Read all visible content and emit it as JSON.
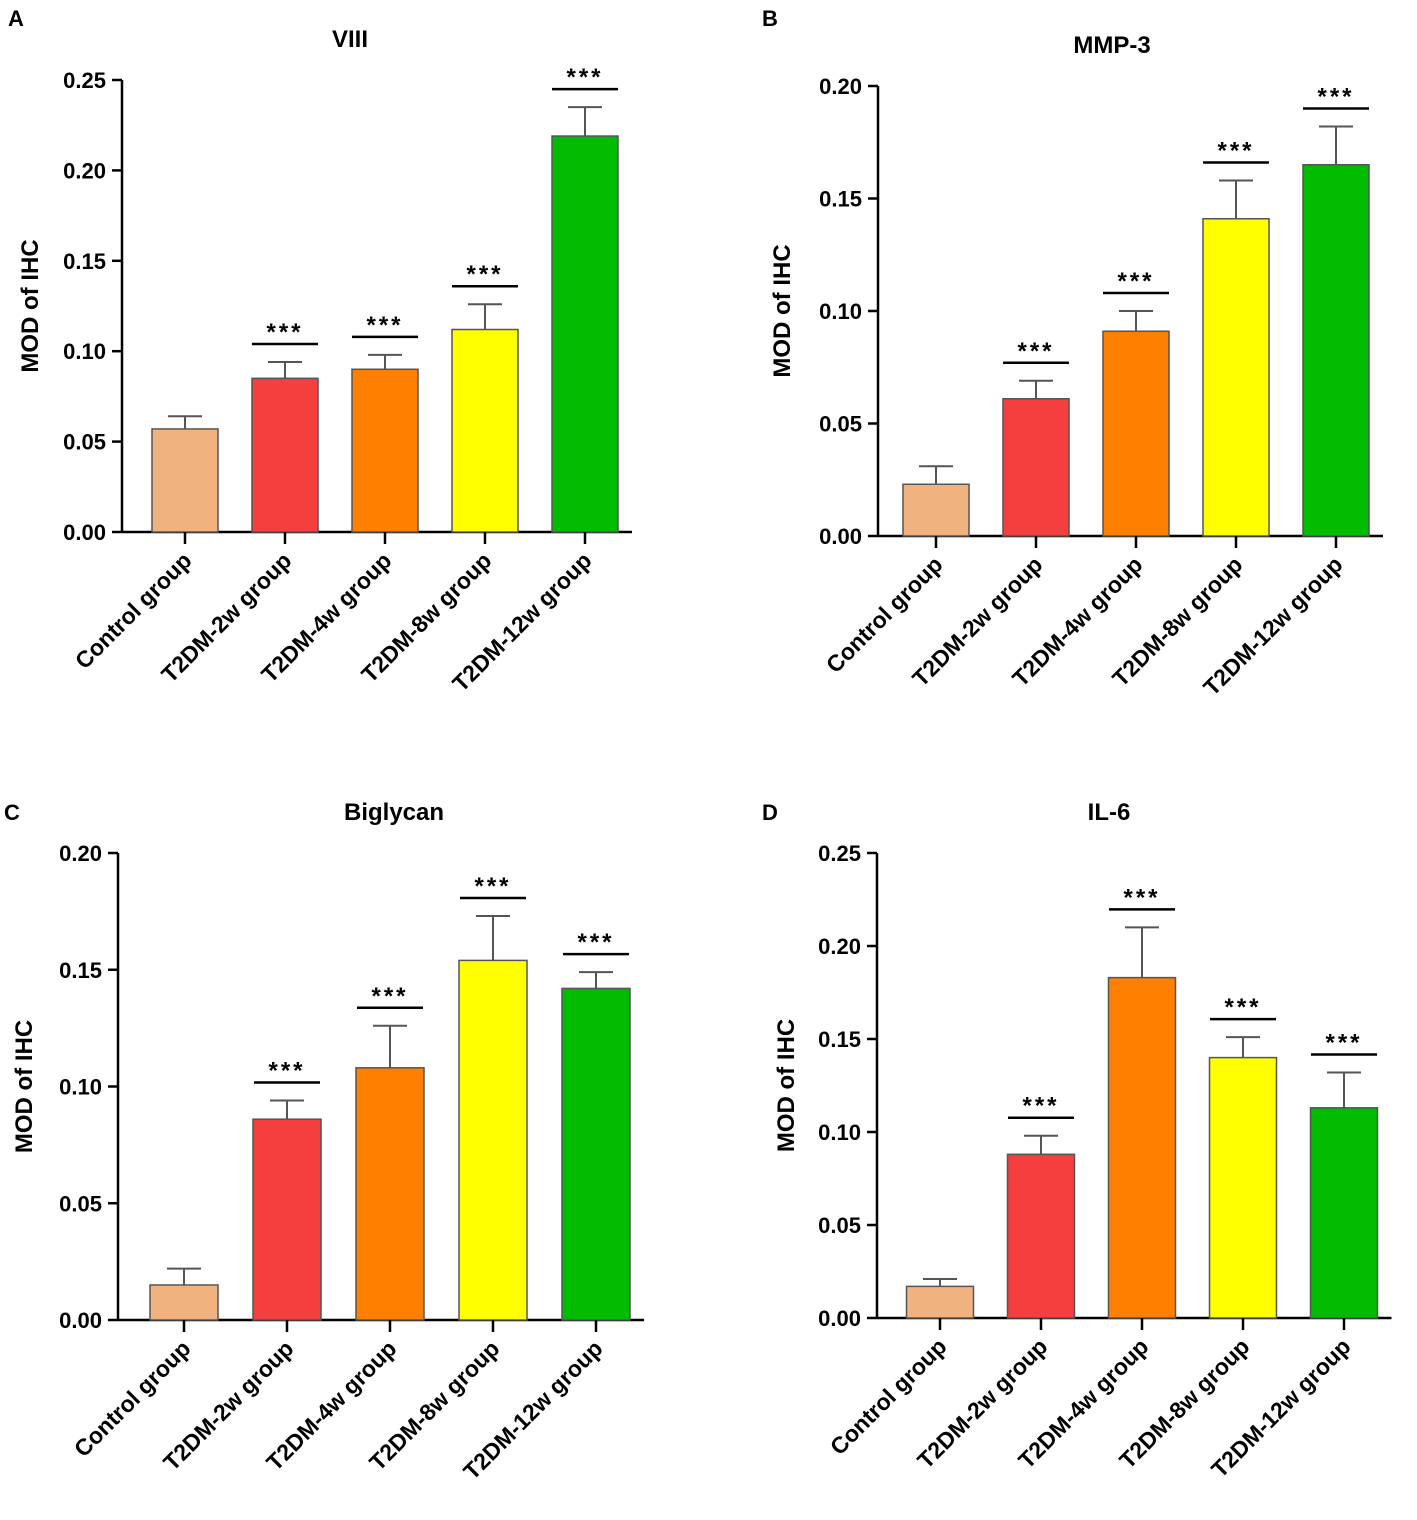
{
  "figure": {
    "categories": [
      "Control group",
      "T2DM-2w group",
      "T2DM-4w group",
      "T2DM-8w group",
      "T2DM-12w group"
    ],
    "colors": [
      "#F0B27E",
      "#F53E3E",
      "#FF7F00",
      "#FFFF00",
      "#00BB00"
    ]
  },
  "chart_data": [
    {
      "panel": "A",
      "type": "bar",
      "title": "VIII",
      "xlabel": "",
      "ylabel": "MOD of IHC",
      "ylim": [
        0,
        0.25
      ],
      "yticks": [
        "0.00",
        "0.05",
        "0.10",
        "0.15",
        "0.20",
        "0.25"
      ],
      "categories": [
        "Control group",
        "T2DM-2w group",
        "T2DM-4w group",
        "T2DM-8w group",
        "T2DM-12w group"
      ],
      "values": [
        0.057,
        0.085,
        0.09,
        0.112,
        0.219
      ],
      "errors": [
        0.007,
        0.009,
        0.008,
        0.014,
        0.016
      ],
      "significance": [
        "",
        "***",
        "***",
        "***",
        "***"
      ]
    },
    {
      "panel": "B",
      "type": "bar",
      "title": "MMP-3",
      "xlabel": "",
      "ylabel": "MOD of IHC",
      "ylim": [
        0,
        0.2
      ],
      "yticks": [
        "0.00",
        "0.05",
        "0.10",
        "0.15",
        "0.20"
      ],
      "categories": [
        "Control group",
        "T2DM-2w group",
        "T2DM-4w group",
        "T2DM-8w group",
        "T2DM-12w group"
      ],
      "values": [
        0.023,
        0.061,
        0.091,
        0.141,
        0.165
      ],
      "errors": [
        0.008,
        0.008,
        0.009,
        0.017,
        0.017
      ],
      "significance": [
        "",
        "***",
        "***",
        "***",
        "***"
      ]
    },
    {
      "panel": "C",
      "type": "bar",
      "title": "Biglycan",
      "xlabel": "",
      "ylabel": "MOD of IHC",
      "ylim": [
        0,
        0.2
      ],
      "yticks": [
        "0.00",
        "0.05",
        "0.10",
        "0.15",
        "0.20"
      ],
      "categories": [
        "Control group",
        "T2DM-2w group",
        "T2DM-4w group",
        "T2DM-8w group",
        "T2DM-12w group"
      ],
      "values": [
        0.015,
        0.086,
        0.108,
        0.154,
        0.142
      ],
      "errors": [
        0.007,
        0.008,
        0.018,
        0.019,
        0.007
      ],
      "significance": [
        "",
        "***",
        "***",
        "***",
        "***"
      ]
    },
    {
      "panel": "D",
      "type": "bar",
      "title": "IL-6",
      "xlabel": "",
      "ylabel": "MOD of IHC",
      "ylim": [
        0,
        0.25
      ],
      "yticks": [
        "0.00",
        "0.05",
        "0.10",
        "0.15",
        "0.20",
        "0.25"
      ],
      "categories": [
        "Control group",
        "T2DM-2w group",
        "T2DM-4w group",
        "T2DM-8w group",
        "T2DM-12w group"
      ],
      "values": [
        0.017,
        0.088,
        0.183,
        0.14,
        0.113
      ],
      "errors": [
        0.004,
        0.01,
        0.027,
        0.011,
        0.019
      ],
      "significance": [
        "",
        "***",
        "***",
        "***",
        "***"
      ]
    }
  ]
}
